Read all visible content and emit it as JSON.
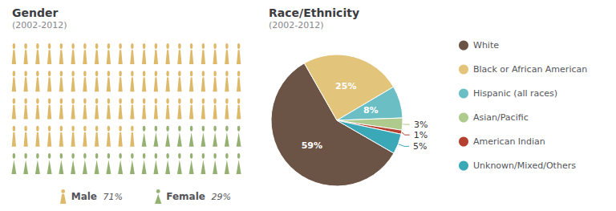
{
  "chart_data": [
    {
      "type": "pictogram",
      "title": "Gender",
      "subtitle": "(2002-2012)",
      "series": [
        {
          "name": "Male",
          "color": "#D4A843",
          "values": [
            71
          ],
          "value_labels": [
            "71%"
          ],
          "marker": "male"
        },
        {
          "name": "Female",
          "color": "#7B9E4E",
          "values": [
            29
          ],
          "value_labels": [
            "29%"
          ],
          "marker": "female"
        }
      ],
      "legend": "bottom"
    },
    {
      "type": "pie",
      "title": "Race/Ethnicity",
      "subtitle": "(2002-2012)",
      "categories": [
        "White",
        "Black or African American",
        "Hispanic (all races)",
        "Asian/Pacific",
        "American Indian",
        "Unknown/Mixed/Others"
      ],
      "values": [
        59,
        25,
        8,
        3,
        1,
        5
      ],
      "value_labels": [
        "59%",
        "25%",
        "8%",
        "3%",
        "1%",
        "5%"
      ],
      "colors": [
        "#6B5446",
        "#E2C47A",
        "#6BBFC4",
        "#AECA8C",
        "#B54030",
        "#3BA8B8"
      ],
      "data_labels": true,
      "legend": "right"
    }
  ]
}
